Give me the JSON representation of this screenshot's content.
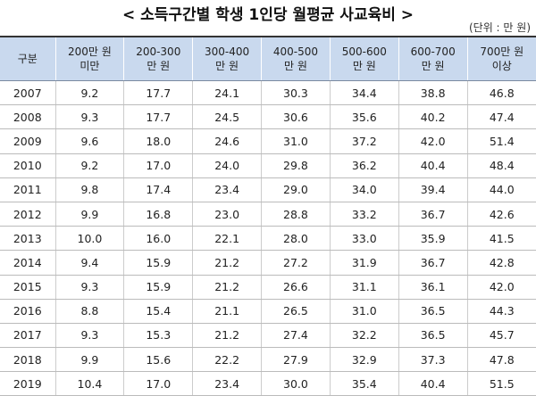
{
  "header": {
    "title": "< 소득구간별 학생 1인당 월평균 사교육비 >",
    "unit": "(단위 : 만 원)"
  },
  "table": {
    "columns": [
      [
        "구분"
      ],
      [
        "200만 원",
        "미만"
      ],
      [
        "200-300",
        "만 원"
      ],
      [
        "300-400",
        "만 원"
      ],
      [
        "400-500",
        "만 원"
      ],
      [
        "500-600",
        "만 원"
      ],
      [
        "600-700",
        "만 원"
      ],
      [
        "700만 원",
        "이상"
      ]
    ],
    "rows": [
      [
        "2007",
        "9.2",
        "17.7",
        "24.1",
        "30.3",
        "34.4",
        "38.8",
        "46.8"
      ],
      [
        "2008",
        "9.3",
        "17.7",
        "24.5",
        "30.6",
        "35.6",
        "40.2",
        "47.4"
      ],
      [
        "2009",
        "9.6",
        "18.0",
        "24.6",
        "31.0",
        "37.2",
        "42.0",
        "51.4"
      ],
      [
        "2010",
        "9.2",
        "17.0",
        "24.0",
        "29.8",
        "36.2",
        "40.4",
        "48.4"
      ],
      [
        "2011",
        "9.8",
        "17.4",
        "23.4",
        "29.0",
        "34.0",
        "39.4",
        "44.0"
      ],
      [
        "2012",
        "9.9",
        "16.8",
        "23.0",
        "28.8",
        "33.2",
        "36.7",
        "42.6"
      ],
      [
        "2013",
        "10.0",
        "16.0",
        "22.1",
        "28.0",
        "33.0",
        "35.9",
        "41.5"
      ],
      [
        "2014",
        "9.4",
        "15.9",
        "21.2",
        "27.2",
        "31.9",
        "36.7",
        "42.8"
      ],
      [
        "2015",
        "9.3",
        "15.9",
        "21.2",
        "26.6",
        "31.1",
        "36.1",
        "42.0"
      ],
      [
        "2016",
        "8.8",
        "15.4",
        "21.1",
        "26.5",
        "31.0",
        "36.5",
        "44.3"
      ],
      [
        "2017",
        "9.3",
        "15.3",
        "21.2",
        "27.4",
        "32.2",
        "36.5",
        "45.7"
      ],
      [
        "2018",
        "9.9",
        "15.6",
        "22.2",
        "27.9",
        "32.9",
        "37.3",
        "47.8"
      ],
      [
        "2019",
        "10.4",
        "17.0",
        "23.4",
        "30.0",
        "35.4",
        "40.4",
        "51.5"
      ]
    ]
  }
}
